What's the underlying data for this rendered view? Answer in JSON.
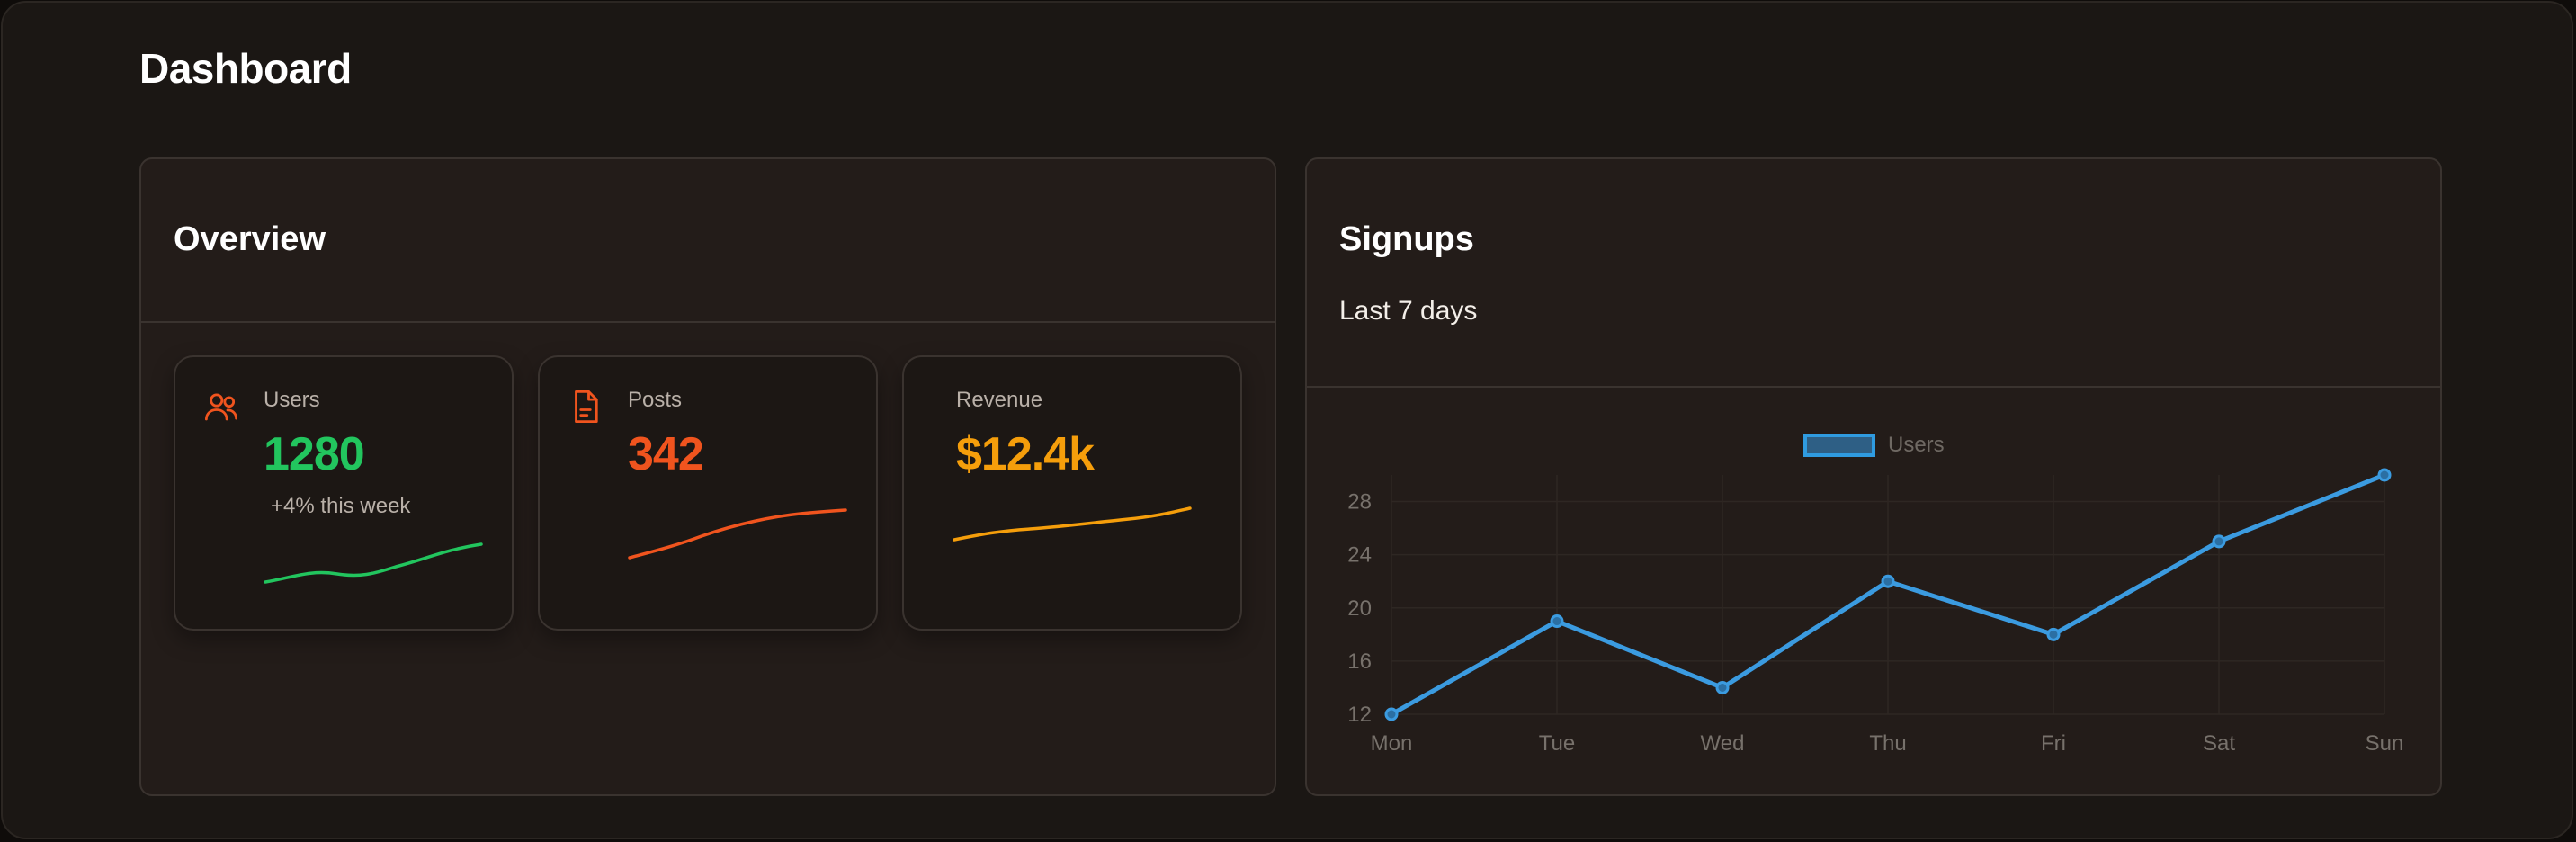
{
  "page": {
    "title": "Dashboard"
  },
  "overview": {
    "title": "Overview",
    "stats": [
      {
        "label": "Users",
        "value": "1280",
        "sub": "+4% this week",
        "color": "#22c55e",
        "icon": "users-icon"
      },
      {
        "label": "Posts",
        "value": "342",
        "sub": "",
        "color": "#f0541e",
        "icon": "file-icon"
      },
      {
        "label": "Revenue",
        "value": "$12.4k",
        "sub": "",
        "color": "#f59e0b",
        "icon": ""
      }
    ]
  },
  "signups": {
    "title": "Signups",
    "subtitle": "Last 7 days",
    "line_color": "#3b9be0"
  },
  "chart_data": {
    "type": "line",
    "categories": [
      "Mon",
      "Tue",
      "Wed",
      "Thu",
      "Fri",
      "Sat",
      "Sun"
    ],
    "series": [
      {
        "name": "Users",
        "values": [
          12,
          19,
          14,
          22,
          18,
          25,
          30
        ]
      }
    ],
    "yticks": [
      12,
      16,
      20,
      24,
      28
    ],
    "ylim": [
      12,
      30
    ],
    "legend": "top-center",
    "grid": true
  }
}
